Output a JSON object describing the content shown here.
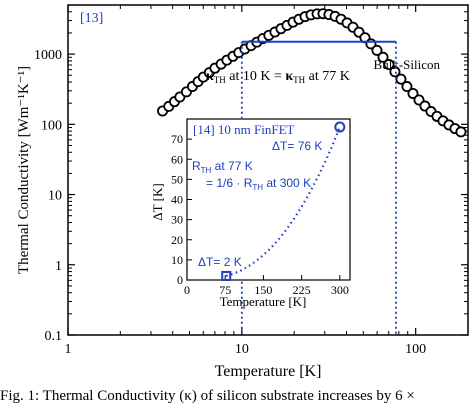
{
  "caption": "Fig. 1: Thermal Conductivity (κ) of silicon substrate increases by 6 ×",
  "chart_data": [
    {
      "type": "scatter",
      "ref_label": "[13]",
      "xlabel": "Temperature [K]",
      "ylabel": "Thermal Conductivity [Wm⁻¹K⁻¹]",
      "x_scale": "log",
      "y_scale": "log",
      "xlim": [
        1,
        200
      ],
      "ylim": [
        0.1,
        5000
      ],
      "x_ticks": [
        1,
        10,
        100
      ],
      "x_tick_labels": [
        "1",
        "10",
        "100"
      ],
      "y_ticks": [
        0.1,
        1,
        10,
        100,
        1000
      ],
      "y_tick_labels": [
        "0.1",
        "1",
        "10",
        "100",
        "1000"
      ],
      "series": [
        {
          "name": "Bulk-Silicon",
          "marker": "open-circle",
          "color": "#000000",
          "x": [
            3.5,
            3.8,
            4.1,
            4.4,
            4.8,
            5.2,
            5.6,
            6.0,
            6.5,
            7.0,
            7.6,
            8.2,
            8.9,
            9.6,
            10.4,
            11.3,
            12.2,
            13.2,
            14.3,
            15.5,
            16.8,
            18.2,
            19.7,
            21.3,
            23.1,
            25.0,
            27.1,
            29.3,
            31.7,
            34.4,
            37.2,
            40.3,
            43.6,
            47.2,
            51.1,
            55.3,
            59.9,
            64.9,
            70.2,
            76.0,
            82.3,
            89.1,
            96.5,
            104.5,
            113.1,
            122.5,
            132.6,
            143.6,
            155.4,
            168.3,
            182.2
          ],
          "y": [
            155,
            180,
            210,
            245,
            290,
            345,
            405,
            470,
            545,
            630,
            720,
            820,
            930,
            1050,
            1180,
            1320,
            1480,
            1660,
            1850,
            2060,
            2300,
            2560,
            2850,
            3130,
            3410,
            3620,
            3740,
            3760,
            3660,
            3440,
            3140,
            2780,
            2410,
            2050,
            1710,
            1400,
            1130,
            900,
            710,
            560,
            440,
            345,
            275,
            222,
            182,
            152,
            130,
            112,
            98,
            87,
            78
          ]
        }
      ],
      "annotations": [
        {
          "text": "Bulk-Silicon"
        },
        {
          "text": "κTH at 10 K = κTH at 77 K",
          "x_from": 10,
          "x_to": 77,
          "y": 1500,
          "color": "#1f3fbf"
        }
      ]
    },
    {
      "type": "scatter",
      "ref_label": "[14] 10 nm FinFET",
      "xlabel": "Temperature [K]",
      "ylabel": "ΔT [K]",
      "xlim": [
        0,
        320
      ],
      "ylim": [
        0,
        80
      ],
      "x_ticks": [
        0,
        75,
        150,
        225,
        300
      ],
      "y_ticks": [
        0,
        10,
        20,
        30,
        40,
        50,
        60,
        70
      ],
      "color": "#1f3fbf",
      "points": [
        {
          "x": 77,
          "y": 2,
          "label": "ΔT= 2 K",
          "marker": "open-square"
        },
        {
          "x": 300,
          "y": 76,
          "label": "ΔT= 76 K",
          "marker": "open-circle"
        }
      ],
      "curve": {
        "style": "dotted",
        "x": [
          77,
          90,
          105,
          120,
          135,
          150,
          165,
          180,
          195,
          210,
          225,
          240,
          255,
          270,
          285,
          300
        ],
        "y": [
          2,
          3,
          4.6,
          6.7,
          9.3,
          12.4,
          16,
          20.2,
          25,
          30.4,
          36.4,
          43,
          50.2,
          58,
          66.6,
          76
        ]
      },
      "annotation_lines": [
        "Rₑₕ at 77 K",
        "= 1/6 · Rₑₕ at 300 K"
      ],
      "annotation": {
        "line1_main": "R",
        "line1_sub": "TH",
        "line1_rest": " at 77 K",
        "line2_main": "= 1/6 · R",
        "line2_sub": "TH",
        "line2_rest": " at 300 K"
      }
    }
  ],
  "labels": {
    "kappa": "κ",
    "th": "TH",
    "at10": " at 10 K = ",
    "at77": " at 77 K"
  }
}
